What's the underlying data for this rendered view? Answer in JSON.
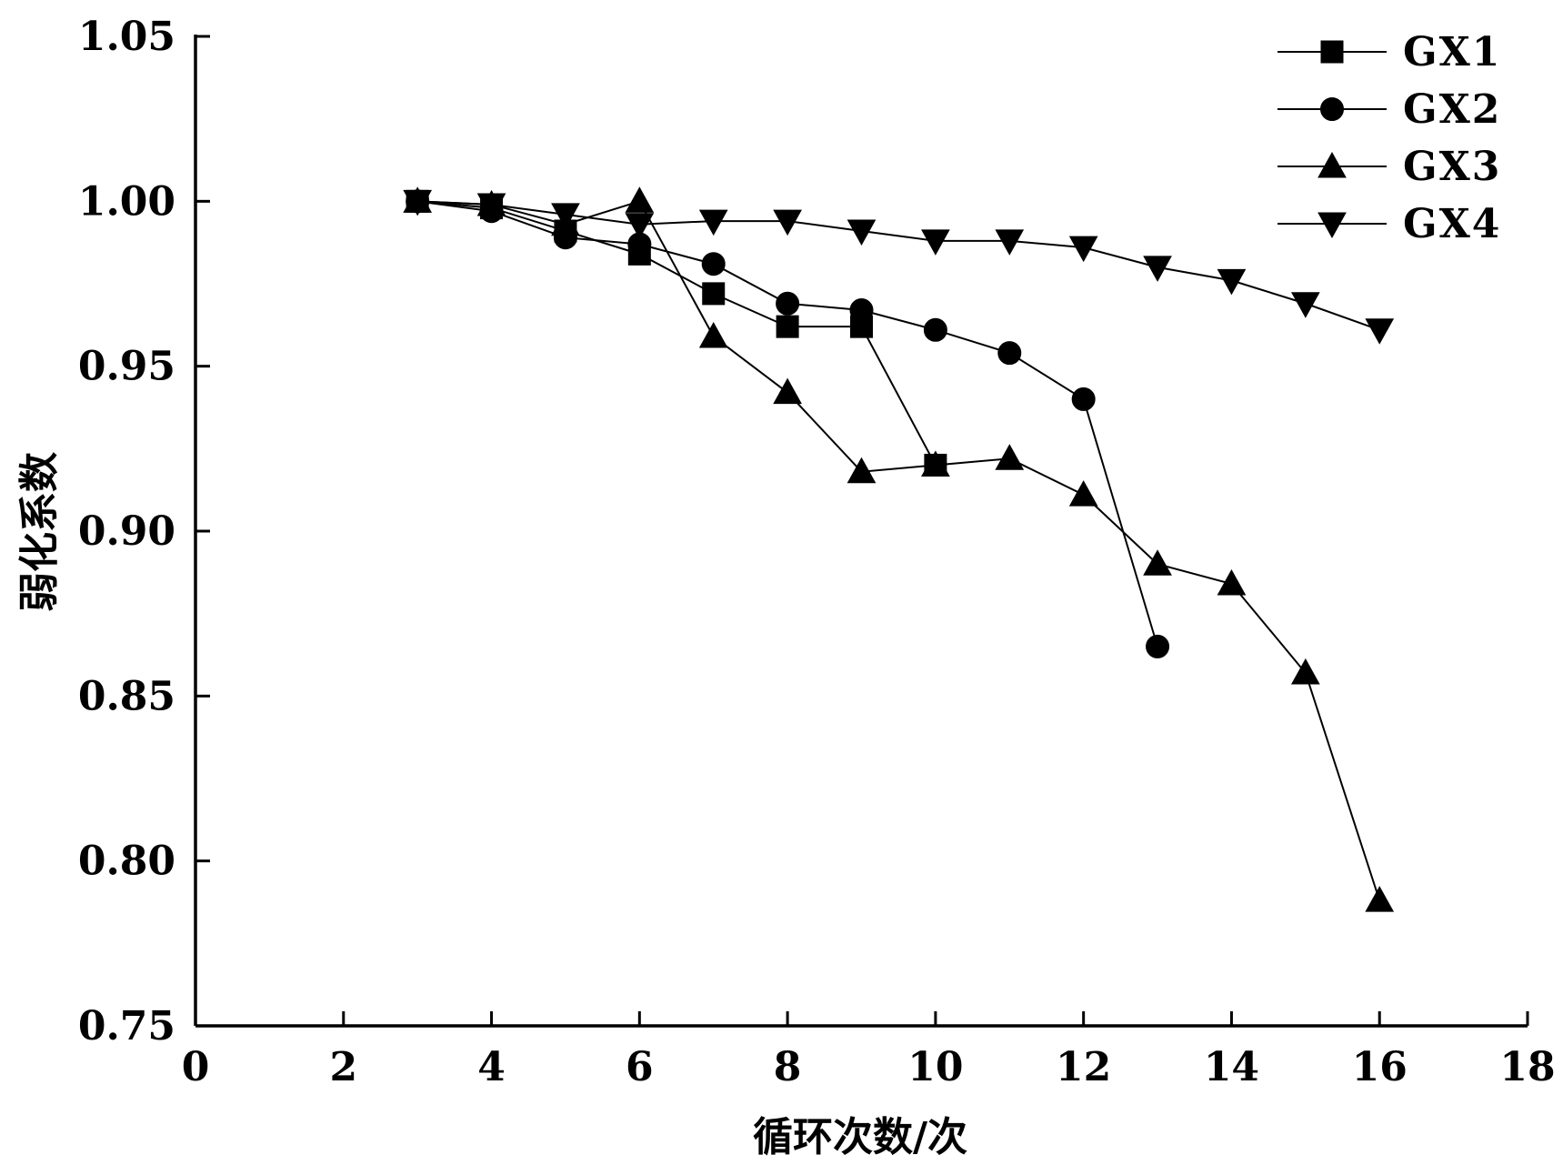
{
  "chart_data": {
    "type": "line",
    "title": "",
    "xlabel": "循环次数/次",
    "ylabel": "弱化系数",
    "xlim": [
      0,
      18
    ],
    "ylim": [
      0.75,
      1.05
    ],
    "x_ticks": [
      "0",
      "2",
      "4",
      "6",
      "8",
      "10",
      "12",
      "14",
      "16",
      "18"
    ],
    "y_ticks": [
      "0.75",
      "0.80",
      "0.85",
      "0.90",
      "0.95",
      "1.00",
      "1.05"
    ],
    "legend_position": "top-right",
    "grid": false,
    "series": [
      {
        "name": "GX1",
        "marker": "square",
        "x": [
          3,
          4,
          5,
          6,
          7,
          8,
          9,
          10
        ],
        "y": [
          1.0,
          0.998,
          0.991,
          0.984,
          0.972,
          0.962,
          0.962,
          0.92
        ]
      },
      {
        "name": "GX2",
        "marker": "circle",
        "x": [
          3,
          4,
          5,
          6,
          7,
          8,
          9,
          10,
          11,
          12,
          13
        ],
        "y": [
          1.0,
          0.997,
          0.989,
          0.987,
          0.981,
          0.969,
          0.967,
          0.961,
          0.954,
          0.94,
          0.865
        ]
      },
      {
        "name": "GX3",
        "marker": "triangle-up",
        "x": [
          3,
          4,
          5,
          6,
          7,
          8,
          9,
          10,
          11,
          12,
          13,
          14,
          15,
          16
        ],
        "y": [
          1.0,
          0.999,
          0.993,
          1.0,
          0.959,
          0.942,
          0.918,
          0.92,
          0.922,
          0.911,
          0.89,
          0.884,
          0.857,
          0.788
        ]
      },
      {
        "name": "GX4",
        "marker": "triangle-down",
        "x": [
          3,
          4,
          5,
          6,
          7,
          8,
          9,
          10,
          11,
          12,
          13,
          14,
          15,
          16
        ],
        "y": [
          1.0,
          0.999,
          0.996,
          0.993,
          0.994,
          0.994,
          0.991,
          0.988,
          0.988,
          0.986,
          0.98,
          0.976,
          0.969,
          0.961
        ]
      }
    ]
  }
}
